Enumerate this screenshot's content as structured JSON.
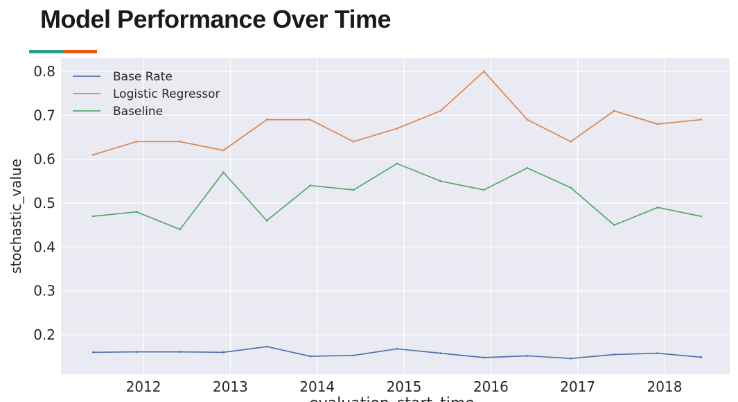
{
  "slide": {
    "title": "Model Performance Over Time",
    "accent_colors": [
      "#2e9c94",
      "#e85b14"
    ]
  },
  "chart_data": {
    "type": "line",
    "title": "",
    "xlabel": "evaluation_start_time",
    "ylabel": "stochastic_value",
    "x": [
      2011.42,
      2011.92,
      2012.42,
      2012.92,
      2013.42,
      2013.92,
      2014.42,
      2014.92,
      2015.42,
      2015.92,
      2016.42,
      2016.92,
      2017.42,
      2017.92,
      2018.42
    ],
    "xlim": [
      2011.05,
      2018.75
    ],
    "ylim": [
      0.11,
      0.83
    ],
    "xticks": [
      2012,
      2013,
      2014,
      2015,
      2016,
      2017,
      2018
    ],
    "yticks": [
      0.2,
      0.3,
      0.4,
      0.5,
      0.6,
      0.7,
      0.8
    ],
    "grid": true,
    "background": "#eaeaf2",
    "legend_position": "top-left",
    "series": [
      {
        "name": "Base Rate",
        "color": "#4c72b0",
        "values": [
          0.16,
          0.161,
          0.161,
          0.16,
          0.173,
          0.151,
          0.153,
          0.168,
          0.158,
          0.148,
          0.152,
          0.146,
          0.155,
          0.158,
          0.149
        ]
      },
      {
        "name": "Logistic Regressor",
        "color": "#dd8452",
        "values": [
          0.61,
          0.64,
          0.64,
          0.62,
          0.69,
          0.69,
          0.64,
          0.67,
          0.71,
          0.8,
          0.69,
          0.64,
          0.71,
          0.68,
          0.69
        ]
      },
      {
        "name": "Baseline",
        "color": "#55a868",
        "values": [
          0.47,
          0.48,
          0.44,
          0.57,
          0.46,
          0.54,
          0.53,
          0.59,
          0.55,
          0.53,
          0.58,
          0.535,
          0.45,
          0.49,
          0.47
        ]
      }
    ]
  }
}
